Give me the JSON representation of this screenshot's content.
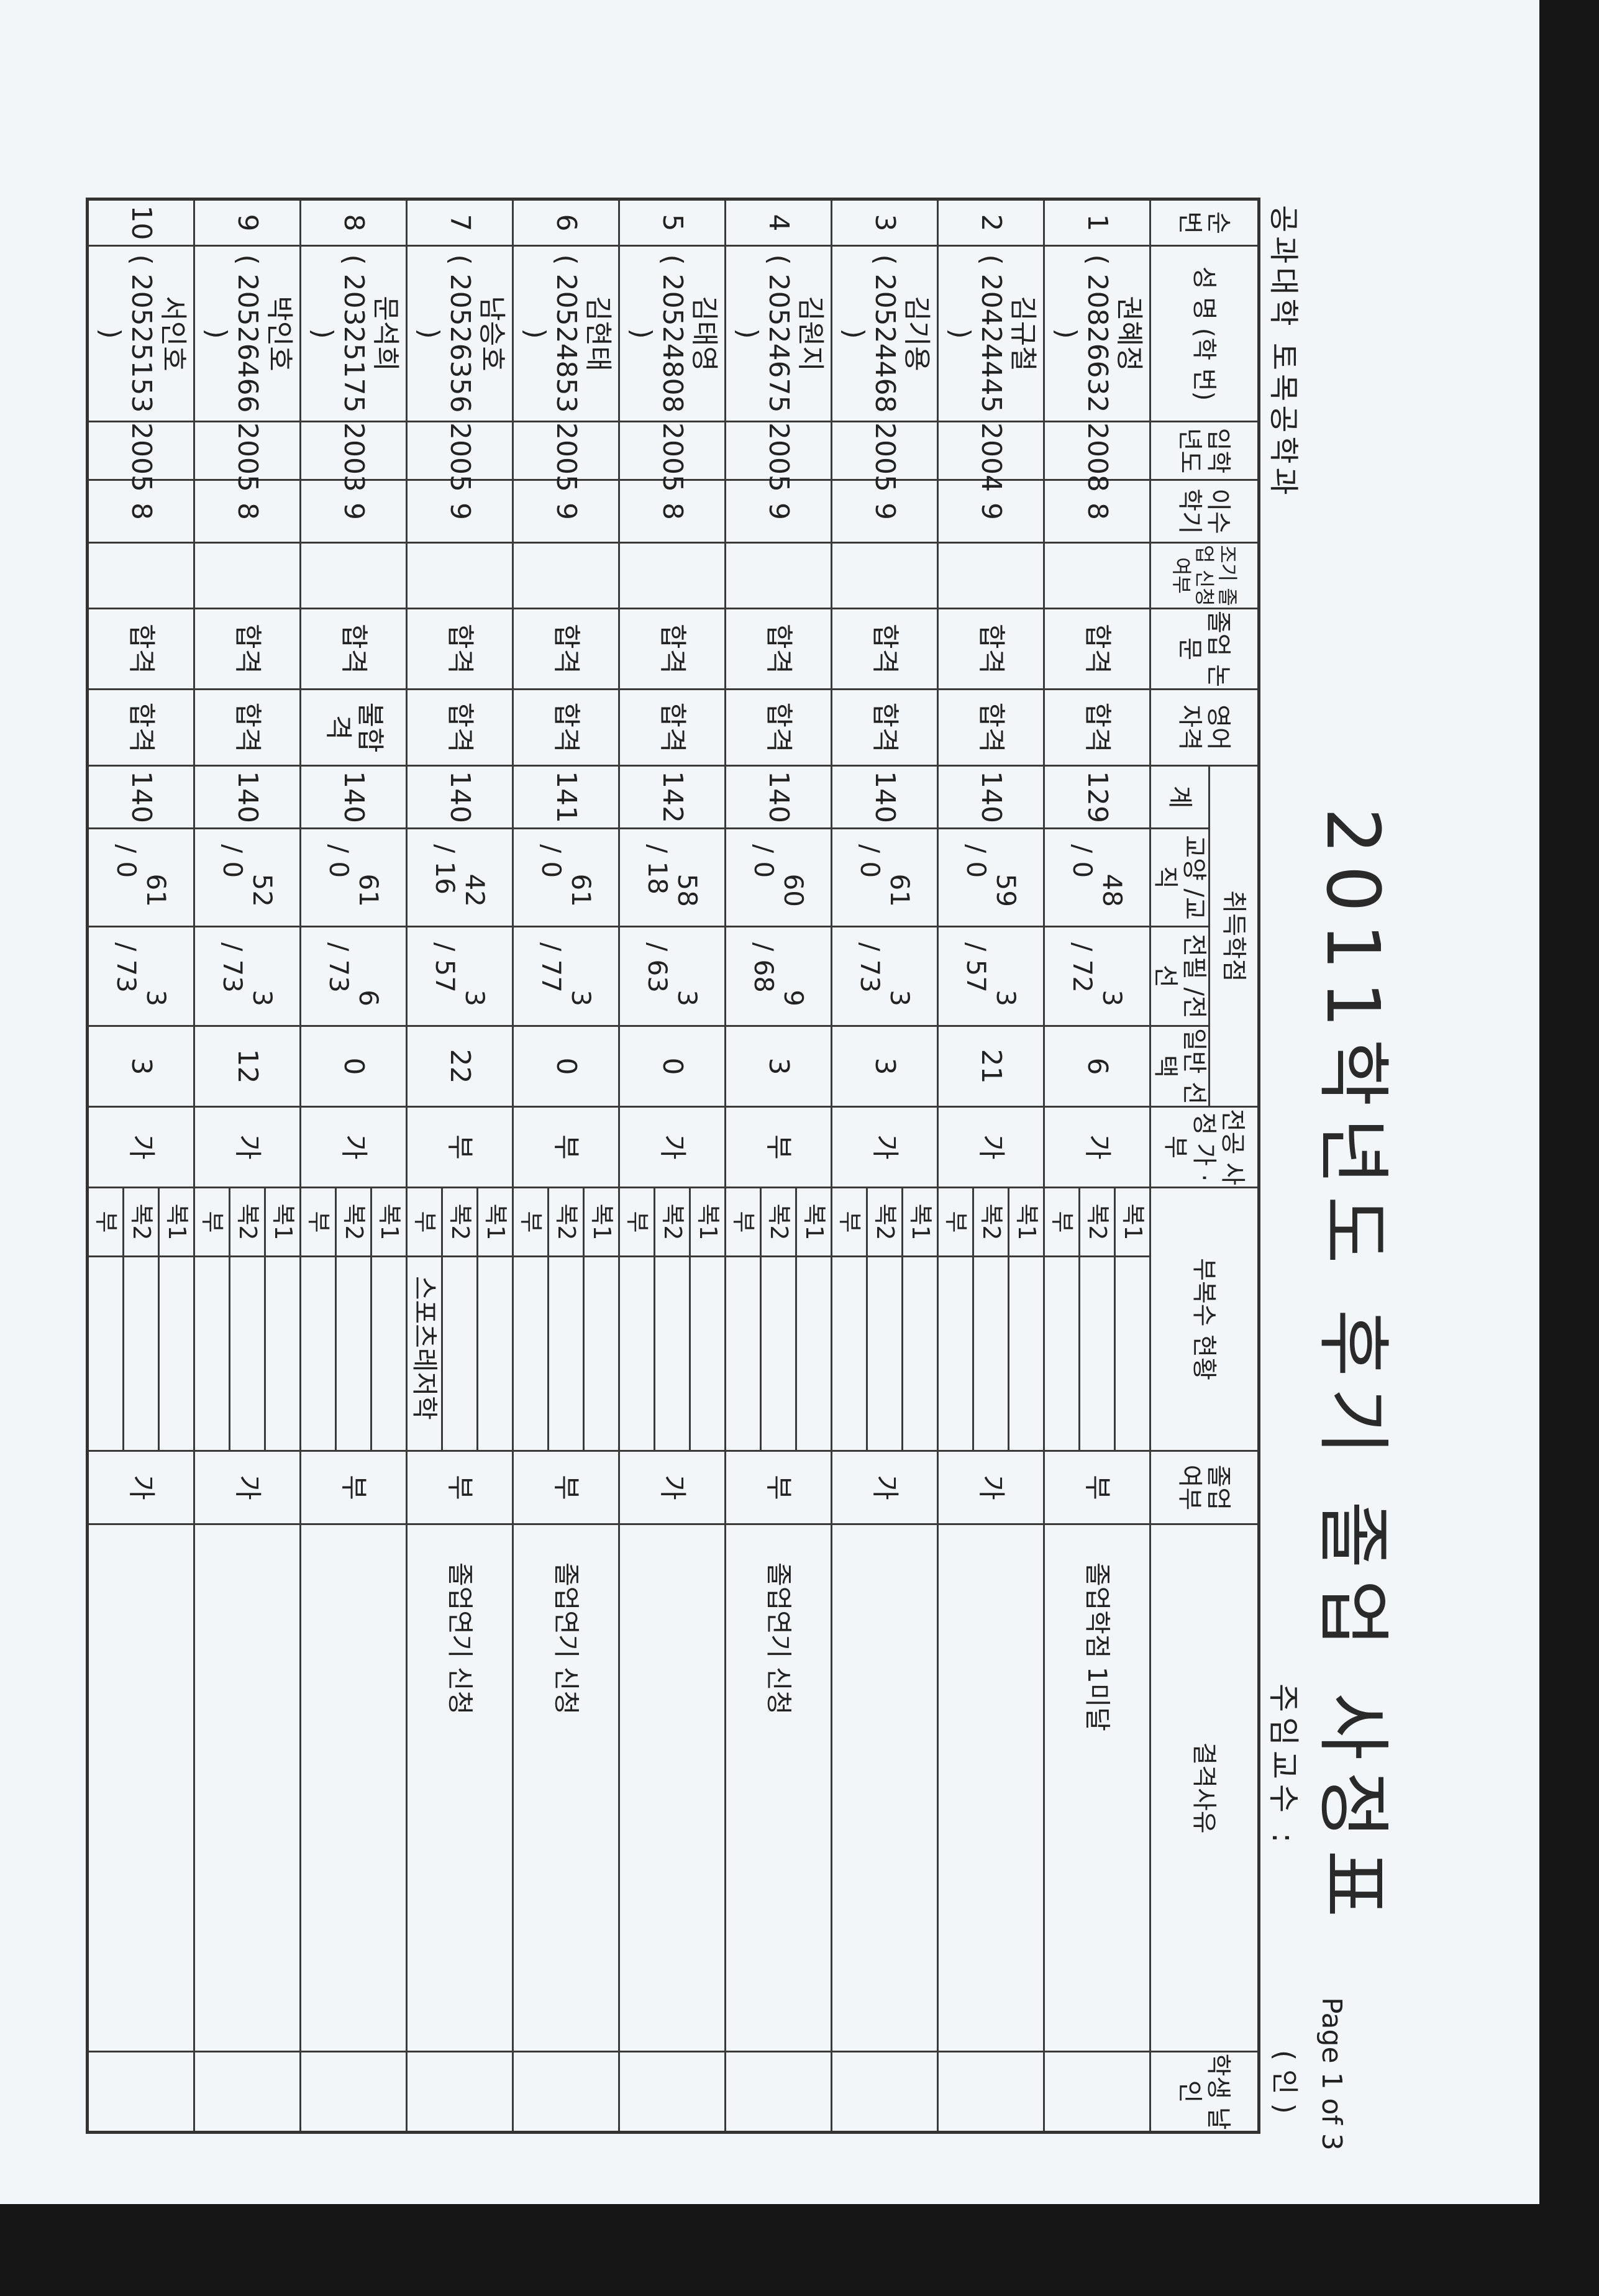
{
  "header": {
    "title": "2011학년도 후기 졸업 사정표",
    "department": "공과대학  토목공학과",
    "professor_label": "주임교수 :",
    "page": "Page 1 of 3",
    "seal": "( 인 )"
  },
  "columns": {
    "no": "순번",
    "name": "성 명 (학 번)",
    "entry_year": "입학 년도",
    "semesters": "이수 학기",
    "early_grad": "조기 졸업 신청 여부",
    "thesis": "졸업 논문",
    "english": "영어 자격",
    "credits": "취득학점",
    "total": "계",
    "liberal": "교양 /교직",
    "major": "전필 /전선",
    "general": "일반 선택",
    "major_review": "전공 사정 가 · 부",
    "minor_double": "부복수 현황",
    "graduation": "졸업 여부",
    "reason": "결격사유",
    "signature": "학생 날인"
  },
  "minor_labels": [
    "복1",
    "복2",
    "부"
  ],
  "rows": [
    {
      "no": "1",
      "name": "권혜정",
      "id": "( 20826632 )",
      "year": "2008",
      "sem": "8",
      "early": "",
      "thesis": "합격",
      "english": "합격",
      "total": "129",
      "lib": "48",
      "libb": "/ 0",
      "maj": "3",
      "majb": "/ 72",
      "gen": "6",
      "review": "가",
      "minors": [
        "",
        "",
        ""
      ],
      "grad": "부",
      "reason": "졸업학점 1미달"
    },
    {
      "no": "2",
      "name": "김규철",
      "id": "( 20424445 )",
      "year": "2004",
      "sem": "9",
      "early": "",
      "thesis": "합격",
      "english": "합격",
      "total": "140",
      "lib": "59",
      "libb": "/ 0",
      "maj": "3",
      "majb": "/ 57",
      "gen": "21",
      "review": "가",
      "minors": [
        "",
        "",
        ""
      ],
      "grad": "가",
      "reason": ""
    },
    {
      "no": "3",
      "name": "김기용",
      "id": "( 20524468 )",
      "year": "2005",
      "sem": "9",
      "early": "",
      "thesis": "합격",
      "english": "합격",
      "total": "140",
      "lib": "61",
      "libb": "/ 0",
      "maj": "3",
      "majb": "/ 73",
      "gen": "3",
      "review": "가",
      "minors": [
        "",
        "",
        ""
      ],
      "grad": "가",
      "reason": ""
    },
    {
      "no": "4",
      "name": "김원지",
      "id": "( 20524675 )",
      "year": "2005",
      "sem": "9",
      "early": "",
      "thesis": "합격",
      "english": "합격",
      "total": "140",
      "lib": "60",
      "libb": "/ 0",
      "maj": "9",
      "majb": "/ 68",
      "gen": "3",
      "review": "부",
      "minors": [
        "",
        "",
        ""
      ],
      "grad": "부",
      "reason": "졸업연기 신청"
    },
    {
      "no": "5",
      "name": "김태영",
      "id": "( 20524808 )",
      "year": "2005",
      "sem": "8",
      "early": "",
      "thesis": "합격",
      "english": "합격",
      "total": "142",
      "lib": "58",
      "libb": "/ 18",
      "maj": "3",
      "majb": "/ 63",
      "gen": "0",
      "review": "가",
      "minors": [
        "",
        "",
        ""
      ],
      "grad": "가",
      "reason": ""
    },
    {
      "no": "6",
      "name": "김현태",
      "id": "( 20524853 )",
      "year": "2005",
      "sem": "9",
      "early": "",
      "thesis": "합격",
      "english": "합격",
      "total": "141",
      "lib": "61",
      "libb": "/ 0",
      "maj": "3",
      "majb": "/ 77",
      "gen": "0",
      "review": "부",
      "minors": [
        "",
        "",
        ""
      ],
      "grad": "부",
      "reason": "졸업연기 신청"
    },
    {
      "no": "7",
      "name": "남승호",
      "id": "( 20526356 )",
      "year": "2005",
      "sem": "9",
      "early": "",
      "thesis": "합격",
      "english": "합격",
      "total": "140",
      "lib": "42",
      "libb": "/ 16",
      "maj": "3",
      "majb": "/ 57",
      "gen": "22",
      "review": "부",
      "minors": [
        "",
        "",
        "스포츠레저학"
      ],
      "grad": "부",
      "reason": "졸업연기 신청"
    },
    {
      "no": "8",
      "name": "문석희",
      "id": "( 20325175 )",
      "year": "2003",
      "sem": "9",
      "early": "",
      "thesis": "합격",
      "english": "불합격",
      "total": "140",
      "lib": "61",
      "libb": "/ 0",
      "maj": "6",
      "majb": "/ 73",
      "gen": "0",
      "review": "가",
      "minors": [
        "",
        "",
        ""
      ],
      "grad": "부",
      "reason": ""
    },
    {
      "no": "9",
      "name": "박인호",
      "id": "( 20526466 )",
      "year": "2005",
      "sem": "8",
      "early": "",
      "thesis": "합격",
      "english": "합격",
      "total": "140",
      "lib": "52",
      "libb": "/ 0",
      "maj": "3",
      "majb": "/ 73",
      "gen": "12",
      "review": "가",
      "minors": [
        "",
        "",
        ""
      ],
      "grad": "가",
      "reason": ""
    },
    {
      "no": "10",
      "name": "서인호",
      "id": "( 20525153 )",
      "year": "2005",
      "sem": "8",
      "early": "",
      "thesis": "합격",
      "english": "합격",
      "total": "140",
      "lib": "61",
      "libb": "/ 0",
      "maj": "3",
      "majb": "/ 73",
      "gen": "3",
      "review": "가",
      "minors": [
        "",
        "",
        ""
      ],
      "grad": "가",
      "reason": ""
    }
  ]
}
